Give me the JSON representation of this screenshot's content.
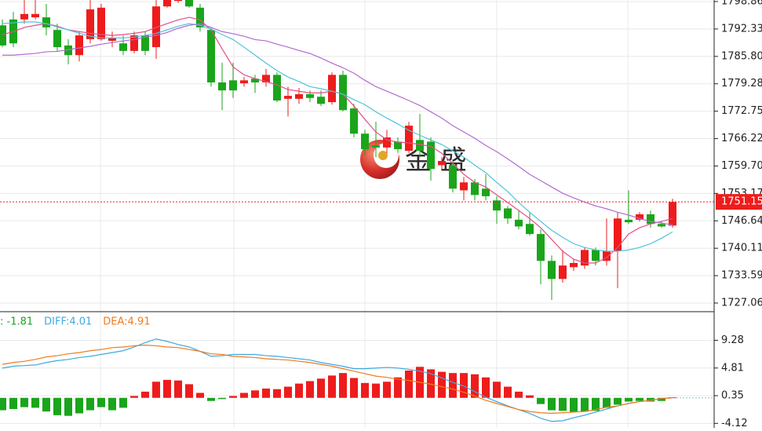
{
  "chart_data": [
    {
      "type": "candlestick",
      "open": [
        1793.2,
        1794.6,
        1794.6,
        1795.1,
        1795.1,
        1792.1,
        1788.4,
        1786.1,
        1789.9,
        1789.9,
        1789.5,
        1788.9,
        1787.1,
        1790.8,
        1788.0,
        1797.7,
        1799.0,
        1799.8,
        1797.4,
        1792.1,
        1779.6,
        1780.1,
        1779.4,
        1780.5,
        1779.6,
        1781.4,
        1775.7,
        1775.7,
        1776.8,
        1776.2,
        1774.9,
        1781.4,
        1773.4,
        1767.4,
        1764.6,
        1764.1,
        1765.5,
        1763.3,
        1765.9,
        1765.5,
        1759.9,
        1759.9,
        1753.9,
        1755.8,
        1754.3,
        1751.5,
        1749.6,
        1746.9,
        1745.9,
        1743.5,
        1737.1,
        1732.8,
        1735.6,
        1736.0,
        1739.7,
        1737.1,
        1739.4,
        1746.9,
        1746.9,
        1748.2,
        1745.9,
        1745.5
      ],
      "high": [
        1794.6,
        1796.4,
        1799.2,
        1799.2,
        1798.3,
        1793.6,
        1789.9,
        1791.7,
        1799.2,
        1798.3,
        1791.7,
        1790.8,
        1791.7,
        1791.7,
        1799.2,
        1800.8,
        1801.5,
        1800.5,
        1798.3,
        1792.7,
        1784.3,
        1784.3,
        1780.9,
        1781.4,
        1782.8,
        1782.0,
        1778.6,
        1778.3,
        1777.7,
        1777.7,
        1782.0,
        1782.4,
        1774.5,
        1768.3,
        1770.2,
        1768.3,
        1766.5,
        1770.2,
        1772.1,
        1766.5,
        1761.8,
        1760.9,
        1757.1,
        1756.6,
        1757.7,
        1752.5,
        1750.2,
        1749.1,
        1748.7,
        1744.6,
        1738.4,
        1739.7,
        1737.5,
        1740.3,
        1740.3,
        1747.2,
        1748.7,
        1753.9,
        1748.7,
        1749.1,
        1746.5,
        1751.9
      ],
      "low": [
        1788.0,
        1788.0,
        1793.6,
        1794.6,
        1790.8,
        1787.1,
        1783.9,
        1784.6,
        1788.9,
        1789.5,
        1788.0,
        1786.1,
        1786.5,
        1786.1,
        1785.2,
        1797.4,
        1798.5,
        1797.4,
        1791.7,
        1778.6,
        1773.0,
        1775.9,
        1778.6,
        1777.1,
        1778.6,
        1774.9,
        1771.5,
        1774.5,
        1774.9,
        1774.0,
        1774.3,
        1772.7,
        1766.5,
        1762.2,
        1761.8,
        1762.8,
        1762.8,
        1762.8,
        1761.8,
        1756.2,
        1759.0,
        1753.4,
        1751.5,
        1751.5,
        1751.5,
        1745.9,
        1745.9,
        1744.6,
        1743.1,
        1731.5,
        1727.8,
        1731.9,
        1734.7,
        1735.2,
        1736.0,
        1736.0,
        1730.6,
        1745.9,
        1746.5,
        1745.0,
        1745.0,
        1745.0
      ],
      "close": [
        1788.4,
        1788.9,
        1795.9,
        1795.9,
        1792.7,
        1788.0,
        1786.1,
        1790.8,
        1797.0,
        1797.4,
        1790.2,
        1787.1,
        1790.8,
        1787.1,
        1797.7,
        1799.9,
        1800.6,
        1797.7,
        1792.7,
        1779.6,
        1777.7,
        1777.7,
        1780.1,
        1779.6,
        1781.4,
        1775.3,
        1776.4,
        1776.8,
        1775.9,
        1774.5,
        1781.4,
        1773.0,
        1767.4,
        1763.7,
        1764.1,
        1766.5,
        1763.7,
        1769.3,
        1763.3,
        1759.0,
        1760.9,
        1754.3,
        1755.8,
        1752.8,
        1752.5,
        1749.1,
        1747.2,
        1745.3,
        1743.5,
        1737.1,
        1732.8,
        1736.0,
        1736.6,
        1739.7,
        1737.1,
        1739.4,
        1747.2,
        1746.3,
        1748.2,
        1745.9,
        1745.3,
        1751.15
      ],
      "up_color": "#ee1c1c",
      "down_color": "#1aa51a",
      "overlays": [
        {
          "color": "#e0508a",
          "values": [
            1791.0,
            1791.7,
            1792.7,
            1793.2,
            1793.6,
            1793.0,
            1792.1,
            1791.7,
            1791.3,
            1791.0,
            1790.8,
            1791.0,
            1791.3,
            1791.7,
            1792.7,
            1793.6,
            1794.5,
            1795.1,
            1794.5,
            1792.1,
            1787.6,
            1783.3,
            1781.4,
            1780.5,
            1779.8,
            1779.0,
            1777.9,
            1777.5,
            1777.1,
            1777.1,
            1777.5,
            1776.8,
            1774.0,
            1770.8,
            1767.8,
            1765.9,
            1765.4,
            1765.2,
            1764.8,
            1764.4,
            1762.7,
            1760.3,
            1757.7,
            1755.8,
            1754.7,
            1752.8,
            1751.0,
            1749.1,
            1747.2,
            1745.0,
            1742.2,
            1739.4,
            1737.5,
            1736.6,
            1736.6,
            1737.9,
            1740.3,
            1743.5,
            1745.0,
            1745.9,
            1746.5,
            1747.2
          ]
        },
        {
          "color": "#4fc3dc",
          "values": [
            1793.6,
            1793.8,
            1794.0,
            1794.0,
            1793.6,
            1792.8,
            1792.1,
            1791.3,
            1790.6,
            1790.2,
            1790.2,
            1790.2,
            1790.4,
            1790.8,
            1791.3,
            1792.1,
            1793.0,
            1793.6,
            1793.2,
            1792.3,
            1791.0,
            1789.8,
            1788.0,
            1786.1,
            1784.2,
            1782.4,
            1780.9,
            1779.8,
            1778.6,
            1778.1,
            1777.5,
            1776.8,
            1775.5,
            1774.3,
            1772.6,
            1771.1,
            1769.7,
            1768.2,
            1767.0,
            1765.9,
            1764.8,
            1763.3,
            1761.8,
            1759.9,
            1758.1,
            1755.8,
            1753.6,
            1751.0,
            1748.7,
            1746.5,
            1744.4,
            1742.7,
            1741.2,
            1740.3,
            1739.7,
            1739.4,
            1739.4,
            1739.7,
            1740.3,
            1741.2,
            1742.5,
            1744.0
          ]
        },
        {
          "color": "#b36bd0",
          "values": [
            1786.1,
            1786.1,
            1786.3,
            1786.5,
            1786.9,
            1787.0,
            1787.4,
            1787.8,
            1788.2,
            1788.7,
            1789.1,
            1789.5,
            1789.8,
            1790.4,
            1790.8,
            1791.5,
            1792.5,
            1793.2,
            1793.6,
            1792.7,
            1791.7,
            1791.2,
            1790.6,
            1789.8,
            1789.5,
            1788.7,
            1788.0,
            1787.2,
            1786.5,
            1785.4,
            1784.2,
            1783.1,
            1781.8,
            1780.1,
            1778.6,
            1777.5,
            1776.4,
            1775.3,
            1774.1,
            1772.6,
            1771.1,
            1769.3,
            1767.8,
            1766.3,
            1764.6,
            1763.1,
            1761.4,
            1759.6,
            1757.7,
            1756.2,
            1754.7,
            1753.2,
            1752.1,
            1751.1,
            1750.2,
            1749.5,
            1748.7,
            1748.0,
            1747.2,
            1746.5,
            1746.1,
            1745.7
          ]
        }
      ],
      "ylim": [
        1725.38,
        1799.23
      ],
      "yticks": [
        1798.86,
        1792.33,
        {
          "value": 1785.8,
          "label": "1785.80"
        },
        1779.28,
        1772.75,
        1766.22,
        {
          "value": 1759.7,
          "label": "1759.70"
        },
        1753.17,
        1746.64,
        1740.11,
        1733.59,
        1727.06
      ],
      "last_price": 1751.15,
      "last_price_color": "#ee1c1c",
      "watermark": "金 盛",
      "grid": true
    },
    {
      "type": "macd",
      "histogram": [
        -2.0,
        -1.8,
        -1.5,
        -1.6,
        -2.2,
        -2.8,
        -2.9,
        -2.5,
        -2.0,
        -1.5,
        -2.0,
        -1.6,
        0.3,
        1.0,
        2.6,
        2.9,
        2.8,
        2.2,
        0.8,
        -0.5,
        -0.2,
        0.3,
        0.8,
        1.2,
        1.5,
        1.4,
        1.8,
        2.3,
        2.7,
        3.1,
        3.6,
        4.0,
        3.2,
        2.4,
        2.3,
        2.6,
        3.3,
        4.4,
        5.0,
        4.6,
        4.2,
        4.0,
        4.0,
        3.8,
        3.3,
        2.6,
        1.8,
        1.0,
        0.4,
        -1.0,
        -2.0,
        -2.1,
        -2.3,
        -2.2,
        -2.1,
        -1.6,
        -1.1,
        -0.6,
        -0.5,
        -0.6,
        -0.5,
        0.1
      ],
      "up_color": "#ee1c1c",
      "down_color": "#1aa51a",
      "series": [
        {
          "color": "#3fa9e0",
          "values": [
            4.8,
            5.1,
            5.2,
            5.3,
            5.7,
            6.0,
            6.2,
            6.5,
            6.7,
            7.0,
            7.3,
            7.6,
            8.2,
            8.9,
            9.5,
            9.1,
            8.6,
            8.2,
            7.5,
            6.7,
            6.8,
            7.0,
            7.0,
            7.0,
            6.8,
            6.7,
            6.5,
            6.3,
            6.1,
            5.7,
            5.4,
            5.1,
            4.7,
            4.7,
            4.8,
            4.9,
            4.8,
            4.6,
            4.3,
            3.9,
            3.2,
            2.5,
            1.9,
            1.0,
            0.1,
            -0.6,
            -1.3,
            -1.9,
            -2.5,
            -3.3,
            -3.8,
            -3.7,
            -3.2,
            -2.8,
            -2.3,
            -1.8,
            -1.3,
            -0.9,
            -0.6,
            -0.4,
            -0.1,
            0.0
          ]
        },
        {
          "color": "#f07b1f",
          "values": [
            5.4,
            5.7,
            5.9,
            6.2,
            6.6,
            6.8,
            7.1,
            7.3,
            7.6,
            7.8,
            8.1,
            8.2,
            8.4,
            8.5,
            8.4,
            8.2,
            8.1,
            7.8,
            7.5,
            7.1,
            7.0,
            6.7,
            6.6,
            6.5,
            6.3,
            6.2,
            6.1,
            5.9,
            5.7,
            5.4,
            5.1,
            4.7,
            4.3,
            3.9,
            3.5,
            3.3,
            3.0,
            2.8,
            2.5,
            2.2,
            1.8,
            1.4,
            0.9,
            0.3,
            -0.4,
            -0.9,
            -1.4,
            -1.9,
            -2.2,
            -2.4,
            -2.5,
            -2.4,
            -2.3,
            -2.2,
            -1.9,
            -1.5,
            -1.3,
            -0.9,
            -0.6,
            -0.4,
            -0.1,
            0.0
          ]
        }
      ],
      "legend": [
        {
          "label": ": -1.81",
          "color": "#1aa51a"
        },
        {
          "label": "DIFF:4.01",
          "color": "#3fa9e0"
        },
        {
          "label": "DEA:4.91",
          "color": "#f07b1f"
        }
      ],
      "ylim": [
        -4.84,
        13.77
      ],
      "yticks": [
        -4.12,
        0.35,
        4.81,
        9.28
      ],
      "grid": true
    }
  ]
}
